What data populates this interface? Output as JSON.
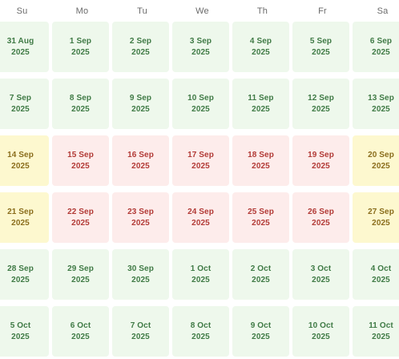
{
  "weekdays": [
    "Su",
    "Mo",
    "Tu",
    "We",
    "Th",
    "Fr",
    "Sa"
  ],
  "colors": {
    "available_bg": "#eef8ec",
    "available_text": "#3f7a45",
    "booked_bg": "#fdeceb",
    "booked_text": "#b23a36",
    "weekend_bg": "#fdf8cf",
    "weekend_text": "#8a6d1c"
  },
  "weeks": [
    [
      {
        "date": "31 Aug",
        "year": "2025",
        "status": "available"
      },
      {
        "date": "1 Sep",
        "year": "2025",
        "status": "available"
      },
      {
        "date": "2 Sep",
        "year": "2025",
        "status": "available"
      },
      {
        "date": "3 Sep",
        "year": "2025",
        "status": "available"
      },
      {
        "date": "4 Sep",
        "year": "2025",
        "status": "available"
      },
      {
        "date": "5 Sep",
        "year": "2025",
        "status": "available"
      },
      {
        "date": "6 Sep",
        "year": "2025",
        "status": "available"
      }
    ],
    [
      {
        "date": "7 Sep",
        "year": "2025",
        "status": "available"
      },
      {
        "date": "8 Sep",
        "year": "2025",
        "status": "available"
      },
      {
        "date": "9 Sep",
        "year": "2025",
        "status": "available"
      },
      {
        "date": "10 Sep",
        "year": "2025",
        "status": "available"
      },
      {
        "date": "11 Sep",
        "year": "2025",
        "status": "available"
      },
      {
        "date": "12 Sep",
        "year": "2025",
        "status": "available"
      },
      {
        "date": "13 Sep",
        "year": "2025",
        "status": "available"
      }
    ],
    [
      {
        "date": "14 Sep",
        "year": "2025",
        "status": "weekend"
      },
      {
        "date": "15 Sep",
        "year": "2025",
        "status": "booked"
      },
      {
        "date": "16 Sep",
        "year": "2025",
        "status": "booked"
      },
      {
        "date": "17 Sep",
        "year": "2025",
        "status": "booked"
      },
      {
        "date": "18 Sep",
        "year": "2025",
        "status": "booked"
      },
      {
        "date": "19 Sep",
        "year": "2025",
        "status": "booked"
      },
      {
        "date": "20 Sep",
        "year": "2025",
        "status": "weekend"
      }
    ],
    [
      {
        "date": "21 Sep",
        "year": "2025",
        "status": "weekend"
      },
      {
        "date": "22 Sep",
        "year": "2025",
        "status": "booked"
      },
      {
        "date": "23 Sep",
        "year": "2025",
        "status": "booked"
      },
      {
        "date": "24 Sep",
        "year": "2025",
        "status": "booked"
      },
      {
        "date": "25 Sep",
        "year": "2025",
        "status": "booked"
      },
      {
        "date": "26 Sep",
        "year": "2025",
        "status": "booked"
      },
      {
        "date": "27 Sep",
        "year": "2025",
        "status": "weekend"
      }
    ],
    [
      {
        "date": "28 Sep",
        "year": "2025",
        "status": "available"
      },
      {
        "date": "29 Sep",
        "year": "2025",
        "status": "available"
      },
      {
        "date": "30 Sep",
        "year": "2025",
        "status": "available"
      },
      {
        "date": "1 Oct",
        "year": "2025",
        "status": "available"
      },
      {
        "date": "2 Oct",
        "year": "2025",
        "status": "available"
      },
      {
        "date": "3 Oct",
        "year": "2025",
        "status": "available"
      },
      {
        "date": "4 Oct",
        "year": "2025",
        "status": "available"
      }
    ],
    [
      {
        "date": "5 Oct",
        "year": "2025",
        "status": "available"
      },
      {
        "date": "6 Oct",
        "year": "2025",
        "status": "available"
      },
      {
        "date": "7 Oct",
        "year": "2025",
        "status": "available"
      },
      {
        "date": "8 Oct",
        "year": "2025",
        "status": "available"
      },
      {
        "date": "9 Oct",
        "year": "2025",
        "status": "available"
      },
      {
        "date": "10 Oct",
        "year": "2025",
        "status": "available"
      },
      {
        "date": "11 Oct",
        "year": "2025",
        "status": "available"
      }
    ]
  ]
}
